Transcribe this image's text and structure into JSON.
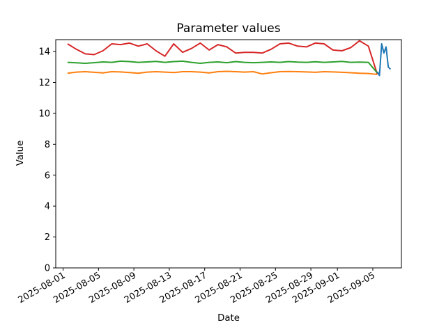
{
  "chart_data": {
    "type": "line",
    "title": "Parameter values",
    "xlabel": "Date",
    "ylabel": "Value",
    "grid": false,
    "legend": "none",
    "background": "#ffffff",
    "frame_color": "#000000",
    "x_start_date": "2025-08-01",
    "x_unit": "days since 2025-08-01 00:00",
    "xlim_days": [
      -0.83,
      38.23
    ],
    "ylim": [
      0,
      14.77
    ],
    "yticks": [
      0,
      2,
      4,
      6,
      8,
      10,
      12,
      14
    ],
    "xtick_dates": [
      "2025-08-01",
      "2025-08-05",
      "2025-08-09",
      "2025-08-13",
      "2025-08-17",
      "2025-08-21",
      "2025-08-25",
      "2025-08-29",
      "2025-09-01",
      "2025-09-05"
    ],
    "xtick_rotation_deg": 30,
    "series": [
      {
        "name": "red",
        "color": "#d62728",
        "x": [
          0.5,
          1.5,
          2.5,
          3.5,
          4.5,
          5.5,
          6.5,
          7.5,
          8.5,
          9.5,
          10.5,
          11.5,
          12.5,
          13.5,
          14.5,
          15.5,
          16.5,
          17.5,
          18.5,
          19.5,
          20.5,
          21.5,
          22.5,
          23.5,
          24.5,
          25.5,
          26.5,
          27.5,
          28.5,
          29.5,
          30.5,
          31.5,
          32.5,
          33.5,
          34.5,
          35.5
        ],
        "values": [
          14.5,
          14.15,
          13.85,
          13.8,
          14.05,
          14.5,
          14.45,
          14.55,
          14.35,
          14.5,
          14.05,
          13.7,
          14.5,
          13.95,
          14.2,
          14.55,
          14.1,
          14.45,
          14.3,
          13.9,
          13.95,
          13.95,
          13.9,
          14.15,
          14.5,
          14.55,
          14.35,
          14.3,
          14.55,
          14.5,
          14.1,
          14.05,
          14.25,
          14.7,
          14.35,
          12.55
        ]
      },
      {
        "name": "green",
        "color": "#2ca02c",
        "x": [
          0.5,
          1.5,
          2.5,
          3.5,
          4.5,
          5.5,
          6.5,
          7.5,
          8.5,
          9.5,
          10.5,
          11.5,
          12.5,
          13.5,
          14.5,
          15.5,
          16.5,
          17.5,
          18.5,
          19.5,
          20.5,
          21.5,
          22.5,
          23.5,
          24.5,
          25.5,
          26.5,
          27.5,
          28.5,
          29.5,
          30.5,
          31.5,
          32.5,
          33.5,
          34.5,
          35.5
        ],
        "values": [
          13.3,
          13.27,
          13.24,
          13.28,
          13.33,
          13.3,
          13.38,
          13.35,
          13.3,
          13.33,
          13.36,
          13.3,
          13.35,
          13.38,
          13.3,
          13.24,
          13.3,
          13.33,
          13.28,
          13.35,
          13.3,
          13.28,
          13.3,
          13.33,
          13.3,
          13.35,
          13.32,
          13.3,
          13.34,
          13.3,
          13.33,
          13.36,
          13.3,
          13.32,
          13.3,
          12.62
        ]
      },
      {
        "name": "orange",
        "color": "#ff7f0e",
        "x": [
          0.5,
          1.5,
          2.5,
          3.5,
          4.5,
          5.5,
          6.5,
          7.5,
          8.5,
          9.5,
          10.5,
          11.5,
          12.5,
          13.5,
          14.5,
          15.5,
          16.5,
          17.5,
          18.5,
          19.5,
          20.5,
          21.5,
          22.5,
          23.5,
          24.5,
          25.5,
          26.5,
          27.5,
          28.5,
          29.5,
          30.5,
          31.5,
          32.5,
          33.5,
          34.5,
          35.5
        ],
        "values": [
          12.6,
          12.67,
          12.7,
          12.66,
          12.62,
          12.7,
          12.68,
          12.64,
          12.6,
          12.67,
          12.7,
          12.67,
          12.64,
          12.7,
          12.7,
          12.67,
          12.62,
          12.7,
          12.72,
          12.7,
          12.67,
          12.7,
          12.55,
          12.63,
          12.7,
          12.71,
          12.7,
          12.68,
          12.66,
          12.7,
          12.68,
          12.66,
          12.63,
          12.6,
          12.58,
          12.52
        ]
      },
      {
        "name": "blue",
        "color": "#1f77b4",
        "x": [
          35.5,
          35.75,
          36.0,
          36.25,
          36.5,
          36.75,
          37.0
        ],
        "values": [
          12.7,
          12.45,
          14.5,
          13.9,
          14.3,
          13.0,
          12.85
        ]
      }
    ]
  }
}
